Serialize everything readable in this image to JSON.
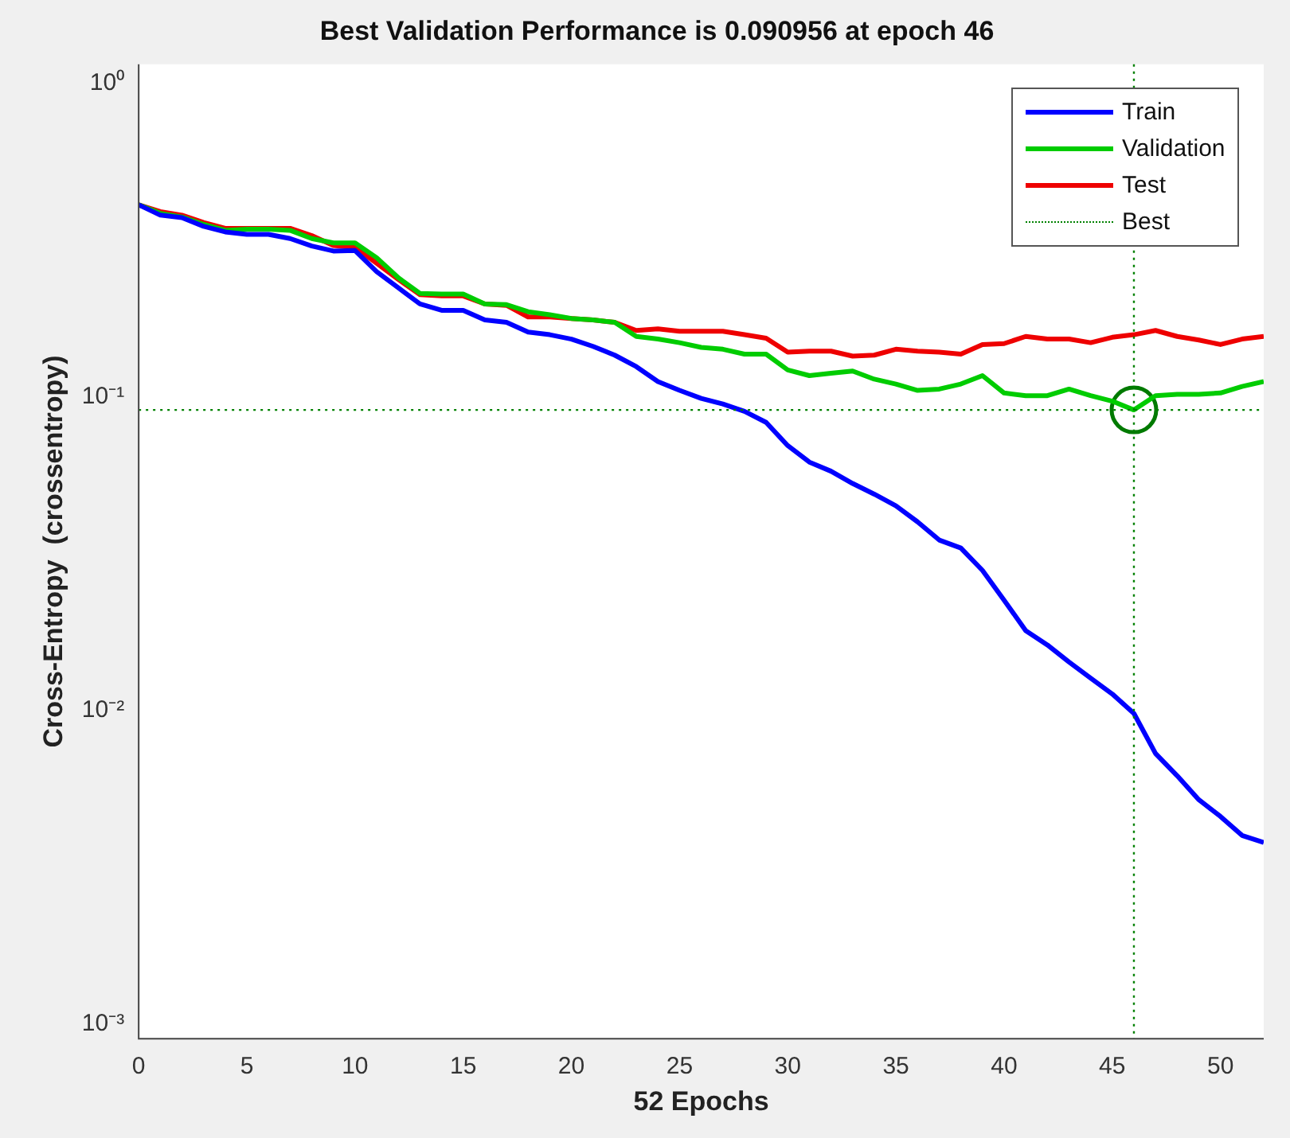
{
  "chart_data": {
    "type": "line",
    "title": "Best Validation Performance is 0.090956 at epoch 46",
    "xlabel": "52 Epochs",
    "ylabel": "Cross-Entropy  (crossentropy)",
    "x": [
      0,
      1,
      2,
      3,
      4,
      5,
      6,
      7,
      8,
      9,
      10,
      11,
      12,
      13,
      14,
      15,
      16,
      17,
      18,
      19,
      20,
      21,
      22,
      23,
      24,
      25,
      26,
      27,
      28,
      29,
      30,
      31,
      32,
      33,
      34,
      35,
      36,
      37,
      38,
      39,
      40,
      41,
      42,
      43,
      44,
      45,
      46,
      47,
      48,
      49,
      50,
      51,
      52
    ],
    "series": [
      {
        "name": "Train",
        "color": "#0000ff",
        "values": [
          0.41,
          0.38,
          0.373,
          0.35,
          0.336,
          0.33,
          0.33,
          0.32,
          0.303,
          0.292,
          0.293,
          0.251,
          0.223,
          0.198,
          0.189,
          0.189,
          0.176,
          0.173,
          0.161,
          0.158,
          0.153,
          0.145,
          0.136,
          0.125,
          0.112,
          0.105,
          0.099,
          0.095,
          0.09,
          0.083,
          0.07,
          0.062,
          0.058,
          0.053,
          0.049,
          0.045,
          0.04,
          0.035,
          0.033,
          0.028,
          0.0225,
          0.018,
          0.0162,
          0.0143,
          0.0127,
          0.0113,
          0.0098,
          0.0073,
          0.0062,
          0.0052,
          0.0046,
          0.004,
          0.0038
        ]
      },
      {
        "name": "Validation",
        "color": "#00cc00",
        "values": [
          0.41,
          0.385,
          0.375,
          0.355,
          0.34,
          0.343,
          0.343,
          0.34,
          0.32,
          0.31,
          0.31,
          0.278,
          0.24,
          0.214,
          0.213,
          0.213,
          0.198,
          0.197,
          0.187,
          0.183,
          0.178,
          0.176,
          0.173,
          0.156,
          0.153,
          0.149,
          0.144,
          0.142,
          0.137,
          0.137,
          0.122,
          0.117,
          0.119,
          0.121,
          0.114,
          0.11,
          0.105,
          0.106,
          0.11,
          0.117,
          0.103,
          0.101,
          0.101,
          0.106,
          0.101,
          0.097,
          0.090956,
          0.101,
          0.102,
          0.102,
          0.103,
          0.108,
          0.112
        ]
      },
      {
        "name": "Test",
        "color": "#ee0000",
        "values": [
          0.41,
          0.39,
          0.38,
          0.36,
          0.345,
          0.345,
          0.345,
          0.345,
          0.327,
          0.304,
          0.3,
          0.267,
          0.237,
          0.212,
          0.21,
          0.21,
          0.198,
          0.196,
          0.18,
          0.18,
          0.178,
          0.176,
          0.173,
          0.163,
          0.165,
          0.162,
          0.162,
          0.162,
          0.158,
          0.154,
          0.139,
          0.14,
          0.14,
          0.135,
          0.136,
          0.142,
          0.14,
          0.139,
          0.137,
          0.147,
          0.148,
          0.156,
          0.153,
          0.153,
          0.149,
          0.155,
          0.158,
          0.163,
          0.156,
          0.152,
          0.147,
          0.153,
          0.156
        ]
      },
      {
        "type": "scatter",
        "marker": "circle",
        "color": "#007a00",
        "x": [
          46
        ],
        "values": [
          0.090956
        ]
      }
    ],
    "xlim": [
      0,
      52
    ],
    "xticks": [
      0,
      5,
      10,
      15,
      20,
      25,
      30,
      35,
      40,
      45,
      50
    ],
    "ylim": [
      0.0009,
      1.15
    ],
    "yticks": [
      {
        "value": 0.001,
        "label": "10⁻³"
      },
      {
        "value": 0.01,
        "label": "10⁻²"
      },
      {
        "value": 0.1,
        "label": "10⁻¹"
      },
      {
        "value": 1,
        "label": "10⁰"
      }
    ],
    "log": "y",
    "grid": false,
    "legend": "top right",
    "marker": "none",
    "line_style": "solid",
    "ref_lines": [
      {
        "axis": "x",
        "value": 46,
        "label": "Best",
        "color": "#008000",
        "line_style": "dotted"
      },
      {
        "axis": "y",
        "value": 0.090956,
        "color": "#008000",
        "line_style": "dotted"
      }
    ]
  }
}
